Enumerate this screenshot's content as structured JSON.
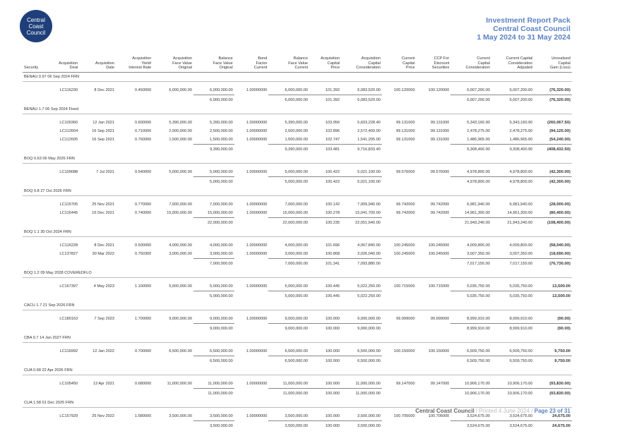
{
  "logo": {
    "lines": [
      "Central",
      "Coast",
      "Council"
    ]
  },
  "header": {
    "title": "Investment Report Pack",
    "org": "Central Coast Council",
    "period": "1 May 2024 to 31 May 2024"
  },
  "columns": [
    "Security",
    "Acquisition\nDeal",
    "Acquisition\nDate",
    "Acquisition\nYield/\nInterest Rate",
    "Acquisition\nFace Value\nOriginal",
    "Balance\nFace Value\nOriginal",
    "Bond\nFactor\nCurrent",
    "Balance\nFace Value\nCurrent",
    "Acquisition\nCapital\nPrice",
    "Acquisition\nCapital\nConsideration",
    "Current\nCapital\nPrice",
    "CCP For\nDiscount\nSecurities",
    "Current\nCapital\nConsideration",
    "Current Capital\nConsideration\nAdjusted",
    "Unrealised\nCapital\nGain (Loss)"
  ],
  "securities": [
    {
      "name": "BENAU 0.97 06 Sep 2024 FRN",
      "rows": [
        [
          "LC116230",
          "8 Dec 2021",
          "0.450000",
          "6,000,000.00",
          "6,000,000.00",
          "1.00000000",
          "6,000,000.00",
          "101.392",
          "6,083,520.00",
          "100.120000",
          "100.120000",
          "6,007,200.00",
          "6,007,200.00",
          "(76,320.00)"
        ]
      ],
      "total": [
        "6,000,000.00",
        "6,000,000.00",
        "101.392",
        "6,083,520.00",
        "6,007,200.00",
        "6,007,200.00",
        "(76,320.00)"
      ]
    },
    {
      "name": "BENAU 1.7 06 Sep 2024 Fixed",
      "rows": [
        [
          "LC100360",
          "12 Jan 2021",
          "0.600000",
          "5,390,000.00",
          "5,390,000.00",
          "1.00000000",
          "5,390,000.00",
          "103.956",
          "5,603,228.40",
          "99.131000",
          "99.131000",
          "5,343,160.90",
          "5,343,160.90",
          "(260,067.50)"
        ],
        [
          "LC112604",
          "16 Sep 2021",
          "0.710000",
          "2,500,000.00",
          "2,500,000.00",
          "1.00000000",
          "2,500,000.00",
          "102.896",
          "2,572,400.00",
          "99.131000",
          "99.131000",
          "2,478,275.00",
          "2,478,275.00",
          "(94,125.00)"
        ],
        [
          "LC112605",
          "16 Sep 2021",
          "0.760000",
          "1,500,000.00",
          "1,500,000.00",
          "1.00000000",
          "1,500,000.00",
          "102.747",
          "1,541,205.00",
          "99.131000",
          "99.131000",
          "1,486,965.00",
          "1,486,965.00",
          "(54,240.00)"
        ]
      ],
      "total": [
        "9,390,000.00",
        "9,390,000.00",
        "103.481",
        "9,716,833.40",
        "9,308,400.90",
        "9,308,400.90",
        "(408,432.50)"
      ]
    },
    {
      "name": "BOQ 0.63 06 May 2026 FRN",
      "rows": [
        [
          "LC109088",
          "7 Jul 2021",
          "0.540000",
          "5,000,000.00",
          "5,000,000.00",
          "1.00000000",
          "5,000,000.00",
          "100.422",
          "5,021,100.00",
          "99.576000",
          "99.576000",
          "4,978,800.00",
          "4,978,800.00",
          "(42,300.00)"
        ]
      ],
      "total": [
        "5,000,000.00",
        "5,000,000.00",
        "100.422",
        "5,021,100.00",
        "4,978,800.00",
        "4,978,800.00",
        "(42,300.00)"
      ]
    },
    {
      "name": "BOQ 0.8 27 Oct 2026 FRN",
      "rows": [
        [
          "LC115705",
          "25 Nov 2021",
          "0.770000",
          "7,000,000.00",
          "7,000,000.00",
          "1.00000000",
          "7,000,000.00",
          "100.142",
          "7,009,940.00",
          "99.742000",
          "99.742000",
          "6,981,940.00",
          "6,981,940.00",
          "(28,000.00)"
        ],
        [
          "LC116445",
          "15 Dec 2021",
          "0.740000",
          "15,000,000.00",
          "15,000,000.00",
          "1.00000000",
          "15,000,000.00",
          "100.278",
          "15,041,700.00",
          "99.742000",
          "99.742000",
          "14,961,300.00",
          "14,961,300.00",
          "(80,400.00)"
        ]
      ],
      "total": [
        "22,000,000.00",
        "22,000,000.00",
        "100.235",
        "22,051,640.00",
        "21,943,240.00",
        "21,943,240.00",
        "(108,400.00)"
      ]
    },
    {
      "name": "BOQ 1.1 30 Oct 2024 FRN",
      "rows": [
        [
          "LC116228",
          "8 Dec 2021",
          "0.500000",
          "4,000,000.00",
          "4,000,000.00",
          "1.00000000",
          "4,000,000.00",
          "101.696",
          "4,067,840.00",
          "100.245000",
          "100.245000",
          "4,009,800.00",
          "4,009,800.00",
          "(58,040.00)"
        ],
        [
          "LC137827",
          "30 Mar 2022",
          "0.750300",
          "3,000,000.00",
          "3,000,000.00",
          "1.00000000",
          "3,000,000.00",
          "100.868",
          "3,026,040.00",
          "100.245000",
          "100.245000",
          "3,007,350.00",
          "3,007,350.00",
          "(18,690.00)"
        ]
      ],
      "total": [
        "7,000,000.00",
        "7,000,000.00",
        "101.341",
        "7,093,880.00",
        "7,017,150.00",
        "7,017,150.00",
        "(76,730.00)"
      ]
    },
    {
      "name": "BOQ 1.2 09 May 2028 COVEREDFLO",
      "rows": [
        [
          "LC167397",
          "4 May 2023",
          "1.100000",
          "5,000,000.00",
          "5,000,000.00",
          "1.00000000",
          "5,000,000.00",
          "100.445",
          "5,022,250.00",
          "100.715000",
          "100.715000",
          "5,035,750.00",
          "5,035,750.00",
          "13,500.00"
        ]
      ],
      "total": [
        "5,000,000.00",
        "5,000,000.00",
        "100.445",
        "5,022,250.00",
        "5,035,750.00",
        "5,035,750.00",
        "13,500.00"
      ]
    },
    {
      "name": "CACU 1.7 21 Sep 2026 FRN",
      "rows": [
        [
          "LC180163",
          "7 Sep 2023",
          "1.700000",
          "9,000,000.00",
          "9,000,000.00",
          "1.00000000",
          "9,000,000.00",
          "100.000",
          "9,000,000.00",
          "99.999000",
          "99.999000",
          "8,999,910.00",
          "8,999,910.00",
          "(90.00)"
        ]
      ],
      "total": [
        "9,000,000.00",
        "9,000,000.00",
        "100.000",
        "9,000,000.00",
        "8,999,910.00",
        "8,999,910.00",
        "(90.00)"
      ]
    },
    {
      "name": "CBA 0.7 14 Jan 2027 FRN",
      "rows": [
        [
          "LC116992",
          "12 Jan 2022",
          "0.700000",
          "6,500,000.00",
          "6,500,000.00",
          "1.00000000",
          "6,500,000.00",
          "100.000",
          "6,500,000.00",
          "100.150000",
          "100.150000",
          "6,509,750.00",
          "6,509,750.00",
          "9,750.00"
        ]
      ],
      "total": [
        "6,500,000.00",
        "6,500,000.00",
        "100.000",
        "6,500,000.00",
        "6,509,750.00",
        "6,509,750.00",
        "9,750.00"
      ]
    },
    {
      "name": "CUA 0.68 22 Apr 2026 FRN",
      "rows": [
        [
          "LC105450",
          "13 Apr 2021",
          "0.680000",
          "11,000,000.00",
          "11,000,000.00",
          "1.00000000",
          "11,000,000.00",
          "100.000",
          "11,000,000.00",
          "99.147000",
          "99.147000",
          "10,906,170.00",
          "10,906,170.00",
          "(93,830.00)"
        ]
      ],
      "total": [
        "11,000,000.00",
        "11,000,000.00",
        "100.000",
        "11,000,000.00",
        "10,906,170.00",
        "10,906,170.00",
        "(93,830.00)"
      ]
    },
    {
      "name": "CUA 1.58 01 Dec 2025 FRN",
      "rows": [
        [
          "LC157929",
          "25 Nov 2022",
          "1.580000",
          "3,500,000.00",
          "3,500,000.00",
          "1.00000000",
          "3,500,000.00",
          "100.000",
          "3,500,000.00",
          "100.705000",
          "100.705000",
          "3,524,675.00",
          "3,524,675.00",
          "24,675.00"
        ]
      ],
      "total": [
        "3,500,000.00",
        "3,500,000.00",
        "100.000",
        "3,500,000.00",
        "3,524,675.00",
        "3,524,675.00",
        "24,675.00"
      ]
    }
  ],
  "footer": {
    "org": "Central Coast Council",
    "printed": " / Printed 4 June 2024 / ",
    "page": "Page 23 of 31"
  }
}
